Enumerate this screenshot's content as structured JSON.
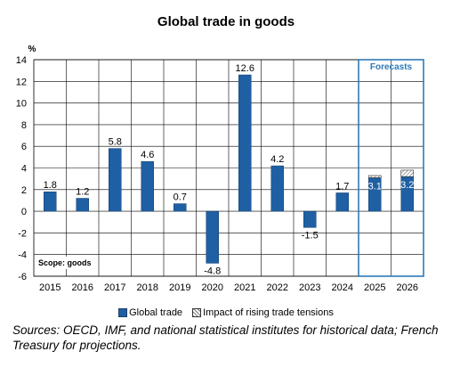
{
  "chart_data": {
    "type": "bar",
    "title": "Global trade in goods",
    "ylabel": "%",
    "ylim": [
      -6,
      14
    ],
    "yticks": [
      -6,
      -4,
      -2,
      0,
      2,
      4,
      6,
      8,
      10,
      12,
      14
    ],
    "categories": [
      "2015",
      "2016",
      "2017",
      "2018",
      "2019",
      "2020",
      "2021",
      "2022",
      "2023",
      "2024",
      "2025",
      "2026"
    ],
    "series": [
      {
        "name": "Global trade",
        "values": [
          1.8,
          1.2,
          5.8,
          4.6,
          0.7,
          -4.8,
          12.6,
          4.2,
          -1.5,
          1.7,
          3.1,
          3.2
        ],
        "color": "#1f5fa3"
      },
      {
        "name": "Impact of rising trade tensions",
        "values": [
          null,
          null,
          null,
          null,
          null,
          null,
          null,
          null,
          null,
          null,
          0.2,
          0.6
        ]
      }
    ],
    "data_labels": [
      "1.8",
      "1.2",
      "5.8",
      "4.6",
      "0.7",
      "-4.8",
      "12.6",
      "4.2",
      "-1.5",
      "1.7",
      "3.1",
      "3.2"
    ],
    "forecast_box_label": "Forecasts",
    "forecast_box_color": "#2e7ab8",
    "scope_label": "Scope: goods",
    "grid": true
  },
  "source_text": "Sources: OECD, IMF, and national statistical institutes for historical data; French Treasury for projections."
}
